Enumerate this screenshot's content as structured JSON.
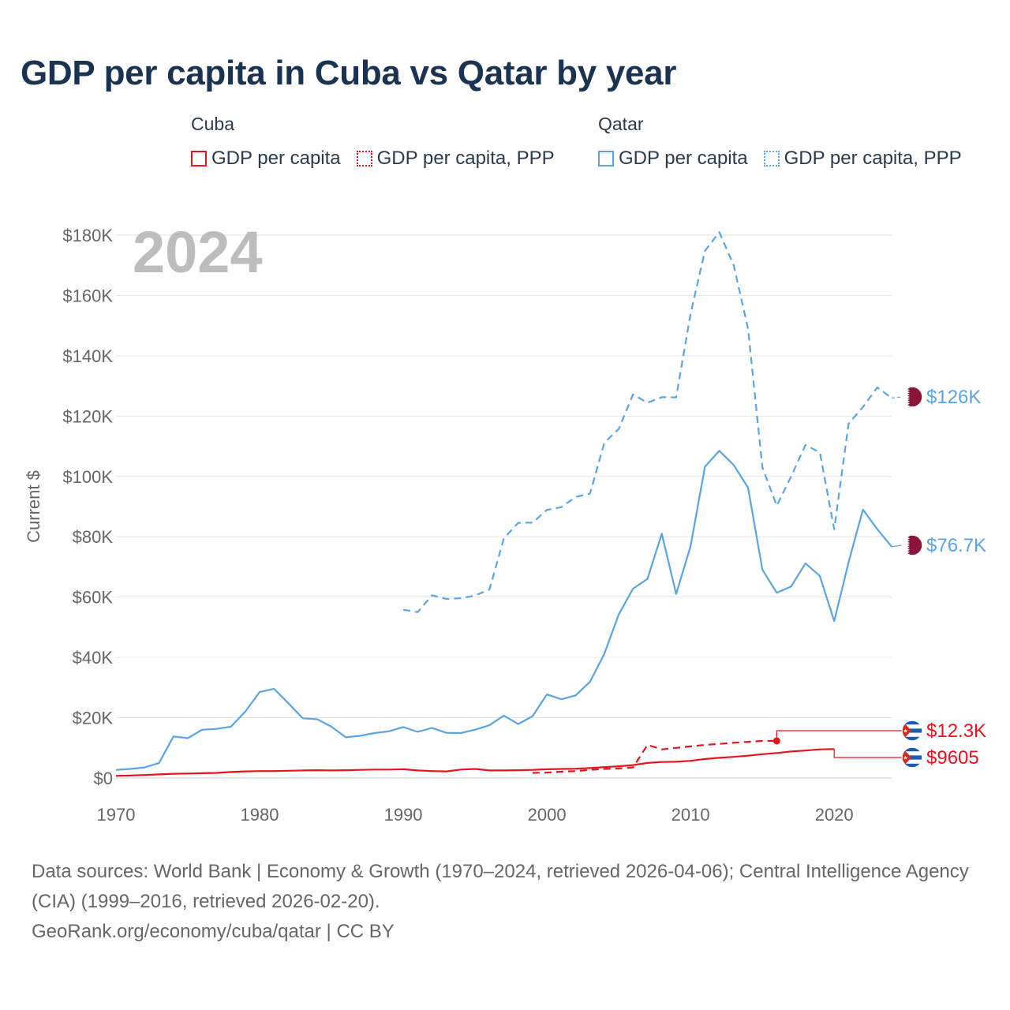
{
  "title": "GDP per capita in Cuba vs Qatar by year",
  "legend": [
    {
      "country": "Cuba",
      "items": [
        {
          "label": "GDP per capita",
          "style": "solid",
          "color": "#e8141d"
        },
        {
          "label": "GDP per capita, PPP",
          "style": "dotted",
          "color": "#e8141d"
        }
      ]
    },
    {
      "country": "Qatar",
      "items": [
        {
          "label": "GDP per capita",
          "style": "solid",
          "color": "#5ba3e3"
        },
        {
          "label": "GDP per capita, PPP",
          "style": "dotted",
          "color": "#5ba3e3"
        }
      ]
    }
  ],
  "colors": {
    "cuba": "#e8141d",
    "qatar": "#5ba3e3",
    "title": "#1a3353",
    "year": "#bdbdbd"
  },
  "chart_data": {
    "type": "line",
    "title": "GDP per capita in Cuba vs Qatar by year",
    "year_label": "2024",
    "xlabel": "",
    "ylabel": "Current $",
    "xlim": [
      1970,
      2024
    ],
    "ylim": [
      0,
      180000
    ],
    "x_ticks": [
      1970,
      1980,
      1990,
      2000,
      2010,
      2020
    ],
    "x_tick_labels": [
      "1970",
      "1980",
      "1990",
      "2000",
      "2010",
      "2020"
    ],
    "y_ticks": [
      0,
      20000,
      40000,
      60000,
      80000,
      100000,
      120000,
      140000,
      160000,
      180000
    ],
    "y_tick_labels": [
      "$0",
      "$20K",
      "$40K",
      "$60K",
      "$80K",
      "$100K",
      "$120K",
      "$140K",
      "$160K",
      "$180K"
    ],
    "grid": true,
    "series": [
      {
        "name": "Qatar GDP per capita",
        "country": "Qatar",
        "style": "solid",
        "color": "#5ba3e3",
        "end_label": "$76.7K",
        "x": [
          1970,
          1971,
          1972,
          1973,
          1974,
          1975,
          1976,
          1977,
          1978,
          1979,
          1980,
          1981,
          1982,
          1983,
          1984,
          1985,
          1986,
          1987,
          1988,
          1989,
          1990,
          1991,
          1992,
          1993,
          1994,
          1995,
          1996,
          1997,
          1998,
          1999,
          2000,
          2001,
          2002,
          2003,
          2004,
          2005,
          2006,
          2007,
          2008,
          2009,
          2010,
          2011,
          2012,
          2013,
          2014,
          2015,
          2016,
          2017,
          2018,
          2019,
          2020,
          2021,
          2022,
          2023,
          2024
        ],
        "values": [
          2700,
          3000,
          3500,
          5000,
          13800,
          13200,
          16000,
          16300,
          17000,
          22000,
          28500,
          29600,
          24800,
          19800,
          19500,
          17000,
          13500,
          14000,
          14900,
          15500,
          16900,
          15300,
          16600,
          15000,
          14900,
          16000,
          17500,
          20700,
          17900,
          20500,
          27700,
          26100,
          27400,
          31900,
          41200,
          54200,
          62800,
          66000,
          81000,
          61000,
          76800,
          103200,
          108500,
          103800,
          96300,
          69100,
          61400,
          63500,
          71200,
          67000,
          52000,
          71500,
          89000,
          82500,
          76700
        ]
      },
      {
        "name": "Qatar GDP per capita, PPP",
        "country": "Qatar",
        "style": "dashed",
        "color": "#5ba3e3",
        "end_label": "$126K",
        "x": [
          1990,
          1991,
          1992,
          1993,
          1994,
          1995,
          1996,
          1997,
          1998,
          1999,
          2000,
          2001,
          2002,
          2003,
          2004,
          2005,
          2006,
          2007,
          2008,
          2009,
          2010,
          2011,
          2012,
          2013,
          2014,
          2015,
          2016,
          2017,
          2018,
          2019,
          2020,
          2021,
          2022,
          2023,
          2024
        ],
        "values": [
          55800,
          55000,
          60600,
          59400,
          59600,
          60500,
          62500,
          79400,
          84600,
          84700,
          88900,
          89800,
          93200,
          94300,
          111200,
          115700,
          127200,
          124400,
          126300,
          126200,
          153800,
          174800,
          181000,
          170000,
          149000,
          103000,
          90300,
          100000,
          110400,
          108000,
          82500,
          117500,
          123000,
          129500,
          126000
        ]
      },
      {
        "name": "Cuba GDP per capita",
        "country": "Cuba",
        "style": "solid",
        "color": "#e8141d",
        "end_label": "$9605",
        "x": [
          1970,
          1971,
          1972,
          1973,
          1974,
          1975,
          1976,
          1977,
          1978,
          1979,
          1980,
          1981,
          1982,
          1983,
          1984,
          1985,
          1986,
          1987,
          1988,
          1989,
          1990,
          1991,
          1992,
          1993,
          1994,
          1995,
          1996,
          1997,
          1998,
          1999,
          2000,
          2001,
          2002,
          2003,
          2004,
          2005,
          2006,
          2007,
          2008,
          2009,
          2010,
          2011,
          2012,
          2013,
          2014,
          2015,
          2016,
          2017,
          2018,
          2019,
          2020
        ],
        "values": [
          700,
          800,
          1000,
          1200,
          1400,
          1500,
          1600,
          1700,
          2000,
          2200,
          2300,
          2300,
          2400,
          2500,
          2600,
          2500,
          2600,
          2700,
          2800,
          2800,
          2900,
          2500,
          2300,
          2200,
          2800,
          3000,
          2500,
          2500,
          2600,
          2700,
          2900,
          3000,
          3100,
          3300,
          3600,
          3900,
          4300,
          5000,
          5300,
          5400,
          5700,
          6300,
          6700,
          7000,
          7400,
          7900,
          8300,
          8800,
          9100,
          9500,
          9605
        ]
      },
      {
        "name": "Cuba GDP per capita, PPP",
        "country": "Cuba",
        "style": "dashed",
        "color": "#e8141d",
        "end_label": "$12.3K",
        "x": [
          1999,
          2000,
          2001,
          2002,
          2003,
          2004,
          2005,
          2006,
          2007,
          2008,
          2009,
          2010,
          2011,
          2012,
          2013,
          2014,
          2015,
          2016
        ],
        "values": [
          1700,
          1800,
          2100,
          2300,
          2700,
          3000,
          3200,
          3500,
          11000,
          9500,
          10000,
          10500,
          11000,
          11300,
          11700,
          12000,
          12300,
          12300
        ]
      }
    ]
  },
  "footer": {
    "sources": "Data sources: World Bank | Economy & Growth (1970–2024, retrieved 2026-04-06); Central Intelligence Agency (CIA) (1999–2016, retrieved 2026-02-20).",
    "attribution": "GeoRank.org/economy/cuba/qatar | CC BY"
  }
}
